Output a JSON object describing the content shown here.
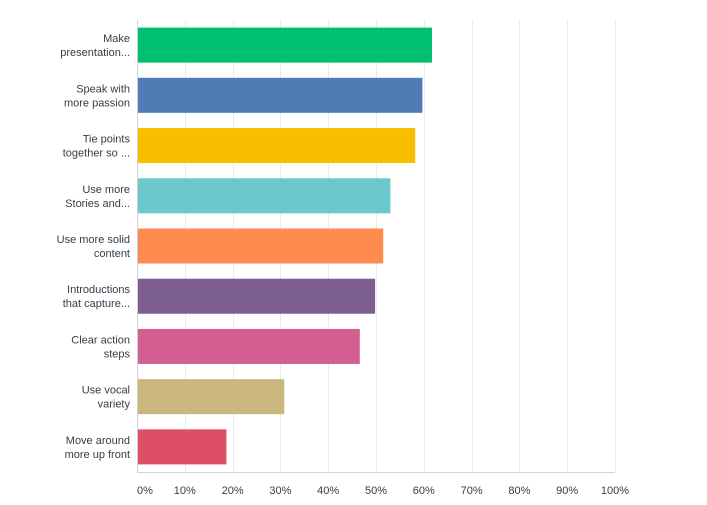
{
  "chart_data": {
    "type": "bar",
    "orientation": "horizontal",
    "categories": [
      [
        "Make",
        "presentation..."
      ],
      [
        "Speak with",
        "more passion"
      ],
      [
        "Tie points",
        "together so ..."
      ],
      [
        "Use more",
        "Stories and..."
      ],
      [
        "Use more solid",
        "content"
      ],
      [
        "Introductions",
        "that capture..."
      ],
      [
        "Clear action",
        "steps"
      ],
      [
        "Use vocal",
        "variety"
      ],
      [
        "Move around",
        "more up front"
      ]
    ],
    "values": [
      61.5,
      59.5,
      58,
      52.8,
      51.3,
      49.6,
      46.4,
      30.6,
      18.5
    ],
    "colors": [
      "#00bf6f",
      "#507cb6",
      "#f9be00",
      "#6bc8cd",
      "#ff8b4f",
      "#7d5e90",
      "#d25f90",
      "#c9b77d",
      "#dc4f64"
    ],
    "xlim": [
      0,
      100
    ],
    "xticks": [
      0,
      10,
      20,
      30,
      40,
      50,
      60,
      70,
      80,
      90,
      100
    ],
    "xtick_labels": [
      "0%",
      "10%",
      "20%",
      "30%",
      "40%",
      "50%",
      "60%",
      "70%",
      "80%",
      "90%",
      "100%"
    ],
    "title": "",
    "xlabel": "",
    "ylabel": "",
    "grid": true,
    "unit": "%"
  }
}
